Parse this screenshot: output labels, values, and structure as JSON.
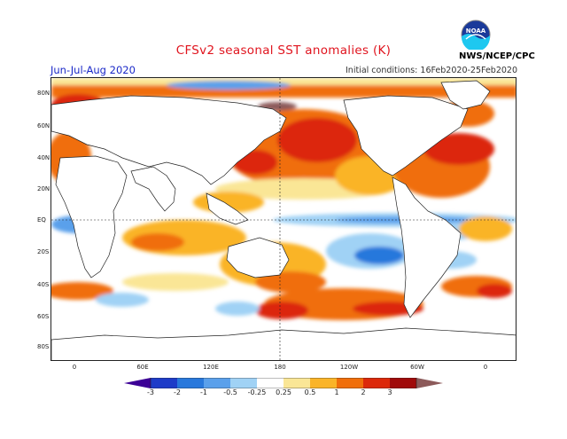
{
  "header": {
    "title": "CFSv2 seasonal SST anomalies (K)",
    "season": "Jun-Jul-Aug 2020",
    "initial_conditions": "Initial conditions: 16Feb2020-25Feb2020",
    "credit": "NWS/NCEP/CPC",
    "logo_text": "NOAA"
  },
  "map": {
    "lat_labels": [
      "80N",
      "60N",
      "40N",
      "20N",
      "EQ",
      "20S",
      "40S",
      "60S",
      "80S"
    ],
    "lon_labels": [
      "0",
      "60E",
      "120E",
      "180",
      "120W",
      "60W",
      "0"
    ]
  },
  "colorbar": {
    "labels": [
      "-3",
      "-2",
      "-1",
      "-0.5",
      "-0.25",
      "0.25",
      "0.5",
      "1",
      "2",
      "3"
    ],
    "colors": {
      "lt_neg3": "#3c0096",
      "neg3_neg2": "#1e3cc8",
      "neg2_neg1": "#2878dc",
      "neg1_neg05": "#5aa0eb",
      "neg05_neg025": "#a0d2f5",
      "neutral": "#ffffff",
      "p025_p05": "#fae696",
      "p05_p1": "#fab428",
      "p1_p2": "#f06e0a",
      "p2_p3": "#dc280a",
      "gt_p3": "#a00a0a",
      "extreme": "#8c5a5a"
    }
  }
}
